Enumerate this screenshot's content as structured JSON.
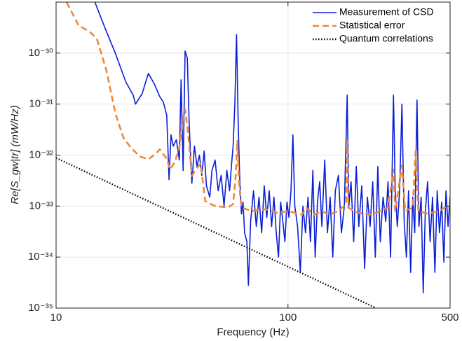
{
  "chart_data": {
    "type": "line",
    "xlabel": "Frequency (Hz)",
    "ylabel": "Re[S_gw|tr] (mW/Hz)",
    "xscale": "log",
    "yscale": "log",
    "grid": true,
    "legend": "upper right",
    "xlim": [
      10,
      500
    ],
    "ylim": [
      1e-35,
      1e-29
    ],
    "xticks": [
      10,
      100,
      500
    ],
    "yticks": [
      {
        "value": 1e-35,
        "label": "10⁻³⁵"
      },
      {
        "value": 1e-34,
        "label": "10⁻³⁴"
      },
      {
        "value": 1e-33,
        "label": "10⁻³³"
      },
      {
        "value": 1e-32,
        "label": "10⁻³²"
      },
      {
        "value": 1e-31,
        "label": "10⁻³¹"
      },
      {
        "value": 1e-30,
        "label": "10⁻³⁰"
      }
    ],
    "series": [
      {
        "name": "Measurement of CSD",
        "color": "#0a1ed8",
        "linestyle": "solid",
        "x": [
          14.7,
          16.3,
          18,
          20,
          21.5,
          22,
          23.5,
          25,
          26.5,
          28,
          29,
          30,
          30.7,
          31.3,
          32,
          33,
          34,
          34.6,
          35.3,
          36,
          36.8,
          37.5,
          38.5,
          39.5,
          40.5,
          41.5,
          42.5,
          43.5,
          44.5,
          46,
          47,
          48.5,
          50,
          51.5,
          53,
          54.5,
          56,
          57,
          58,
          59,
          60,
          61,
          62,
          63,
          64,
          65,
          66.5,
          67.5,
          69,
          71,
          73,
          75,
          77,
          79,
          81,
          83,
          85,
          87,
          89,
          91,
          93,
          95,
          97,
          99,
          101,
          103,
          105,
          107,
          110,
          113,
          116,
          119,
          122,
          125,
          128,
          131,
          134,
          137,
          140,
          144,
          148,
          152,
          156,
          160,
          165,
          170,
          175,
          180,
          183,
          187,
          192,
          197,
          202,
          208,
          214,
          220,
          226,
          232,
          238,
          244,
          250,
          257,
          264,
          270,
          277,
          285,
          290,
          296,
          303,
          310,
          317,
          324,
          331,
          338,
          345,
          352,
          360,
          367,
          375,
          383,
          391,
          400,
          410,
          420,
          430,
          440,
          450,
          460,
          470,
          480,
          490,
          500
        ],
        "values": [
          1e-29,
          3e-30,
          1e-30,
          2.7e-31,
          1.5e-31,
          1e-31,
          1.6e-31,
          4e-31,
          2.5e-31,
          1.4e-31,
          1.1e-31,
          6e-32,
          3.3e-33,
          2.5e-32,
          1.5e-32,
          2e-32,
          8e-33,
          3e-31,
          5e-33,
          1.1e-30,
          8e-31,
          4e-32,
          2.8e-33,
          1.5e-32,
          6e-33,
          1e-32,
          4e-33,
          1.2e-32,
          2.5e-33,
          1.5e-33,
          5e-33,
          8e-33,
          2e-33,
          4e-33,
          1e-33,
          5e-33,
          2e-33,
          6e-33,
          1.5e-32,
          1e-31,
          2.3e-30,
          4e-32,
          3e-33,
          7e-34,
          1.2e-33,
          3e-34,
          2e-34,
          2.8e-35,
          5e-34,
          2e-33,
          4e-34,
          1.5e-33,
          3e-34,
          2.5e-33,
          6e-34,
          2e-33,
          4e-34,
          1.5e-33,
          3e-34,
          1e-34,
          1.2e-33,
          5e-34,
          2e-34,
          1.2e-33,
          6e-34,
          2e-33,
          2.5e-32,
          1e-33,
          4e-34,
          5e-35,
          1e-33,
          3e-34,
          1.5e-33,
          2e-34,
          5e-33,
          1e-34,
          1.2e-33,
          3e-33,
          4e-34,
          8e-33,
          3e-34,
          1.5e-33,
          1e-34,
          2e-33,
          4e-33,
          3e-34,
          1e-33,
          1.5e-31,
          1e-33,
          3e-33,
          2e-34,
          6e-33,
          4e-34,
          2.5e-33,
          6e-35,
          1.5e-33,
          4e-34,
          3e-33,
          1e-34,
          6e-33,
          2e-34,
          1.5e-33,
          5e-34,
          3e-33,
          1e-34,
          1.5e-31,
          2e-33,
          4e-34,
          2e-33,
          1e-31,
          5e-34,
          1e-34,
          2e-33,
          5e-35,
          1.5e-33,
          3e-34,
          1.2e-31,
          4e-34,
          1.5e-33,
          2e-35,
          8e-34,
          3e-33,
          2e-34,
          1.5e-33,
          5e-35,
          2e-33,
          3e-34,
          1.2e-33,
          8e-35,
          2e-33,
          4e-34,
          1.5e-33
        ]
      },
      {
        "name": "Statistical error",
        "color": "#f0883a",
        "linestyle": "dashed",
        "x": [
          11.1,
          12.5,
          14,
          15,
          16.5,
          18,
          19.5,
          21,
          23,
          25,
          27,
          28,
          30,
          31,
          32.5,
          34,
          35,
          36,
          37,
          38.5,
          40,
          42,
          44,
          48,
          55,
          58,
          59.5,
          60.5,
          61.5,
          63,
          70,
          80,
          90,
          100,
          115,
          120,
          130,
          140,
          150,
          165,
          178,
          180,
          182,
          200,
          230,
          250,
          270,
          285,
          290,
          310,
          320,
          345,
          355,
          365,
          400,
          450,
          500
        ],
        "values": [
          1e-29,
          3.5e-30,
          2.6e-30,
          1.9e-30,
          4.5e-31,
          6.7e-32,
          2.2e-32,
          1.4e-32,
          9.4e-33,
          8.3e-33,
          1.07e-32,
          1.3e-32,
          8.5e-33,
          5.2e-33,
          7.3e-33,
          1.4e-32,
          4.2e-32,
          7.9e-32,
          3e-32,
          3.9e-33,
          5.2e-33,
          6.8e-33,
          1.25e-33,
          1.02e-33,
          9.3e-34,
          1.1e-33,
          3.9e-33,
          1.9e-32,
          2.8e-33,
          9.3e-34,
          8e-34,
          8.7e-34,
          7.4e-34,
          8e-34,
          6.8e-34,
          9.3e-34,
          6.8e-34,
          8e-34,
          6.8e-34,
          8e-34,
          1.1e-33,
          1.9e-32,
          9.3e-34,
          7.4e-34,
          6.8e-34,
          8e-34,
          9.3e-34,
          5.2e-33,
          8e-34,
          6.2e-33,
          8e-34,
          9.3e-34,
          1.2e-32,
          8e-34,
          7.1e-34,
          8e-34,
          1.1e-33
        ]
      },
      {
        "name": "Quantum correlations",
        "color": "#000000",
        "linestyle": "dotted",
        "x": [
          10,
          240
        ],
        "values": [
          8.8e-33,
          1e-35
        ]
      }
    ]
  }
}
